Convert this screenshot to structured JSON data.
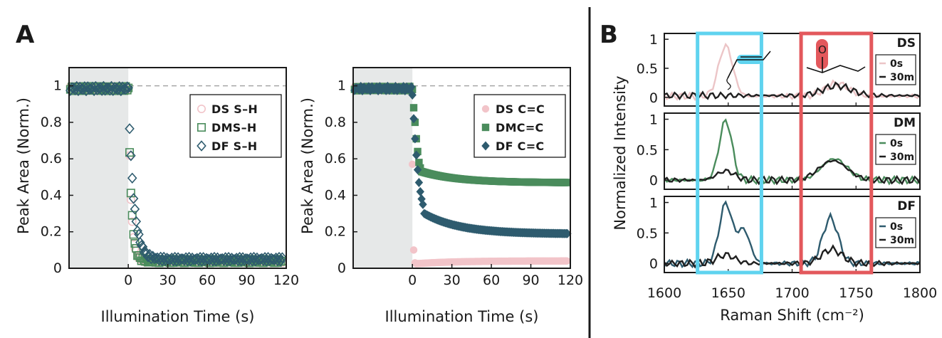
{
  "panel_labels": {
    "a": "A",
    "b": "B"
  },
  "colors": {
    "DS": "#f2c4c9",
    "DM": "#4a8c5c",
    "DF": "#2e5b6e",
    "zero_s_DS": "#ecc5c7",
    "thirty_m": "#1f1f1f",
    "cyan_box": "#5fd3ef",
    "red_box": "#e3585c",
    "shade": "#e6e8e8"
  },
  "chart_data": [
    {
      "type": "scatter",
      "id": "A-left",
      "ylabel": "Peak Area (Norm.)",
      "xlabel": "Illumination Time (s)",
      "x_ticks": [
        "0",
        "30",
        "60",
        "90",
        "120"
      ],
      "y_ticks": [
        "0",
        "0.2",
        "0.4",
        "0.6",
        "0.8",
        "1"
      ],
      "xlim": [
        -45,
        120
      ],
      "ylim": [
        0,
        1.1
      ],
      "reference_line_y": 1,
      "shaded_region_x": [
        -45,
        0
      ],
      "legend": [
        "DS S–H",
        "DMS–H",
        "DF S–H"
      ],
      "legend_position": "top-right",
      "series": [
        {
          "name": "DS S–H",
          "marker": "open-circle",
          "decay": {
            "y0": 0.98,
            "plateau": 0.04,
            "tau": 2.0
          }
        },
        {
          "name": "DMS–H",
          "marker": "open-square",
          "decay": {
            "y0": 0.98,
            "plateau": 0.04,
            "tau": 2.2
          }
        },
        {
          "name": "DF S–H",
          "marker": "open-diamond",
          "decay": {
            "y0": 0.98,
            "plateau": 0.05,
            "tau": 4.0
          }
        }
      ]
    },
    {
      "type": "scatter",
      "id": "A-right",
      "ylabel": "Peak Area (Norm.)",
      "xlabel": "Illumination Time (s)",
      "x_ticks": [
        "0",
        "30",
        "60",
        "90",
        "120"
      ],
      "y_ticks": [
        "0",
        "0.2",
        "0.4",
        "0.6",
        "0.8",
        "1"
      ],
      "xlim": [
        -45,
        120
      ],
      "ylim": [
        0,
        1.1
      ],
      "reference_line_y": 1,
      "shaded_region_x": [
        -45,
        0
      ],
      "legend": [
        "DS C=C",
        "DMC=C",
        "DF C=C"
      ],
      "legend_position": "top-right",
      "series": [
        {
          "name": "DS C=C",
          "marker": "filled-circle",
          "points_early": [
            [
              0,
              0.57
            ],
            [
              1,
              0.1
            ],
            [
              2,
              0.03
            ]
          ],
          "plateau_start": 0.025,
          "plateau_end": 0.04
        },
        {
          "name": "DMC=C",
          "marker": "filled-square",
          "points_early": [
            [
              0,
              0.98
            ],
            [
              1,
              0.88
            ],
            [
              2,
              0.8
            ],
            [
              3,
              0.71
            ],
            [
              4,
              0.64
            ],
            [
              5,
              0.58
            ],
            [
              6,
              0.55
            ]
          ],
          "plateau_start": 0.53,
          "plateau_end": 0.47
        },
        {
          "name": "DF C=C",
          "marker": "filled-diamond",
          "points_early": [
            [
              0,
              0.95
            ],
            [
              1,
              0.82
            ],
            [
              2,
              0.71
            ],
            [
              3,
              0.62
            ],
            [
              4,
              0.54
            ],
            [
              5,
              0.47
            ],
            [
              6,
              0.42
            ],
            [
              7,
              0.38
            ],
            [
              8,
              0.35
            ]
          ],
          "plateau_start": 0.3,
          "plateau_end": 0.19
        }
      ]
    },
    {
      "type": "line",
      "id": "B",
      "ylabel": "Normalized Intensity",
      "xlabel": "Raman Shift (cm⁻²)",
      "x_ticks": [
        "1600",
        "1650",
        "1700",
        "1750",
        "1800"
      ],
      "xlim": [
        1600,
        1800
      ],
      "highlight_boxes": [
        {
          "x": [
            1626,
            1676
          ],
          "color": "cyan"
        },
        {
          "x": [
            1707,
            1762
          ],
          "color": "red"
        }
      ],
      "subpanels": [
        {
          "label": "DS",
          "y_ticks": [
            "0",
            "0.5",
            "1"
          ],
          "legend": [
            "0s",
            "30m"
          ],
          "zero_s": {
            "peaks": [
              [
                1648,
                0.87,
                5.5
              ],
              [
                1735,
                0.22,
                9
              ]
            ],
            "baseline": 0.02
          },
          "thirty_m": {
            "peaks": [
              [
                1735,
                0.17,
                11
              ]
            ],
            "baseline": 0.03
          }
        },
        {
          "label": "DM",
          "y_ticks": [
            "0",
            "0.5",
            "1"
          ],
          "legend": [
            "0s",
            "30m"
          ],
          "zero_s": {
            "peaks": [
              [
                1648,
                0.98,
                5
              ],
              [
                1733,
                0.35,
                10
              ]
            ],
            "baseline": 0.0
          },
          "thirty_m": {
            "peaks": [
              [
                1648,
                0.15,
                7
              ],
              [
                1732,
                0.32,
                11
              ]
            ],
            "baseline": 0.0
          }
        },
        {
          "label": "DF",
          "y_ticks": [
            "0",
            "0.5",
            "1"
          ],
          "legend": [
            "0s",
            "30m"
          ],
          "zero_s": {
            "peaks": [
              [
                1648,
                0.98,
                5
              ],
              [
                1662,
                0.55,
                5
              ],
              [
                1730,
                0.75,
                6
              ]
            ],
            "baseline": 0.0
          },
          "thirty_m": {
            "peaks": [
              [
                1648,
                0.14,
                7
              ],
              [
                1731,
                0.23,
                8
              ]
            ],
            "baseline": 0.0
          }
        }
      ]
    }
  ]
}
